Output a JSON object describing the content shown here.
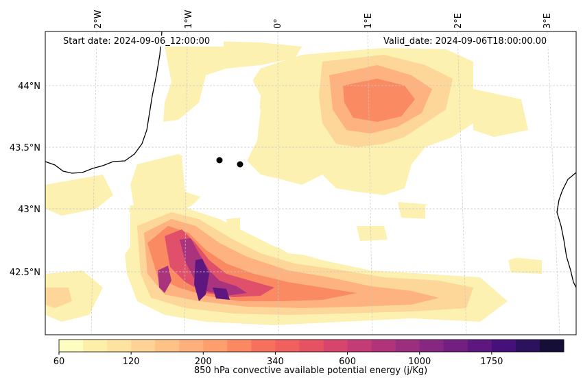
{
  "header": {
    "start_date": "Start date: 2024-09-06_12:00:00",
    "valid_date": "Valid_date: 2024-09-06T18:00:00.00"
  },
  "longitude_labels": [
    "2°W",
    "1°W",
    "0°",
    "1°E",
    "2°E",
    "3°E"
  ],
  "latitude_labels": [
    "44°N",
    "43.5°N",
    "43°N",
    "42.5°N"
  ],
  "colorbar": {
    "title": "850 hPa convective available potential energy (j/Kg)",
    "tick_labels": [
      "60",
      "120",
      "200",
      "340",
      "600",
      "1000",
      "1750"
    ],
    "levels": [
      60,
      80,
      100,
      120,
      150,
      170,
      200,
      240,
      280,
      340,
      400,
      500,
      600,
      700,
      850,
      1000,
      1200,
      1450,
      1750,
      2100,
      2500
    ],
    "colors": [
      "#fcfdbf",
      "#fdefa8",
      "#fde2a0",
      "#fed395",
      "#fec287",
      "#feb07c",
      "#fe9f6d",
      "#fb8861",
      "#f7705c",
      "#f1605d",
      "#e75263",
      "#d8456c",
      "#c43c75",
      "#b1347b",
      "#9c2e7f",
      "#862781",
      "#721f81",
      "#5d177f",
      "#45107a",
      "#2c115f",
      "#150e37"
    ]
  },
  "markers": [
    {
      "name": "point-1",
      "color": "#000000"
    },
    {
      "name": "point-2",
      "color": "#000000"
    }
  ]
}
